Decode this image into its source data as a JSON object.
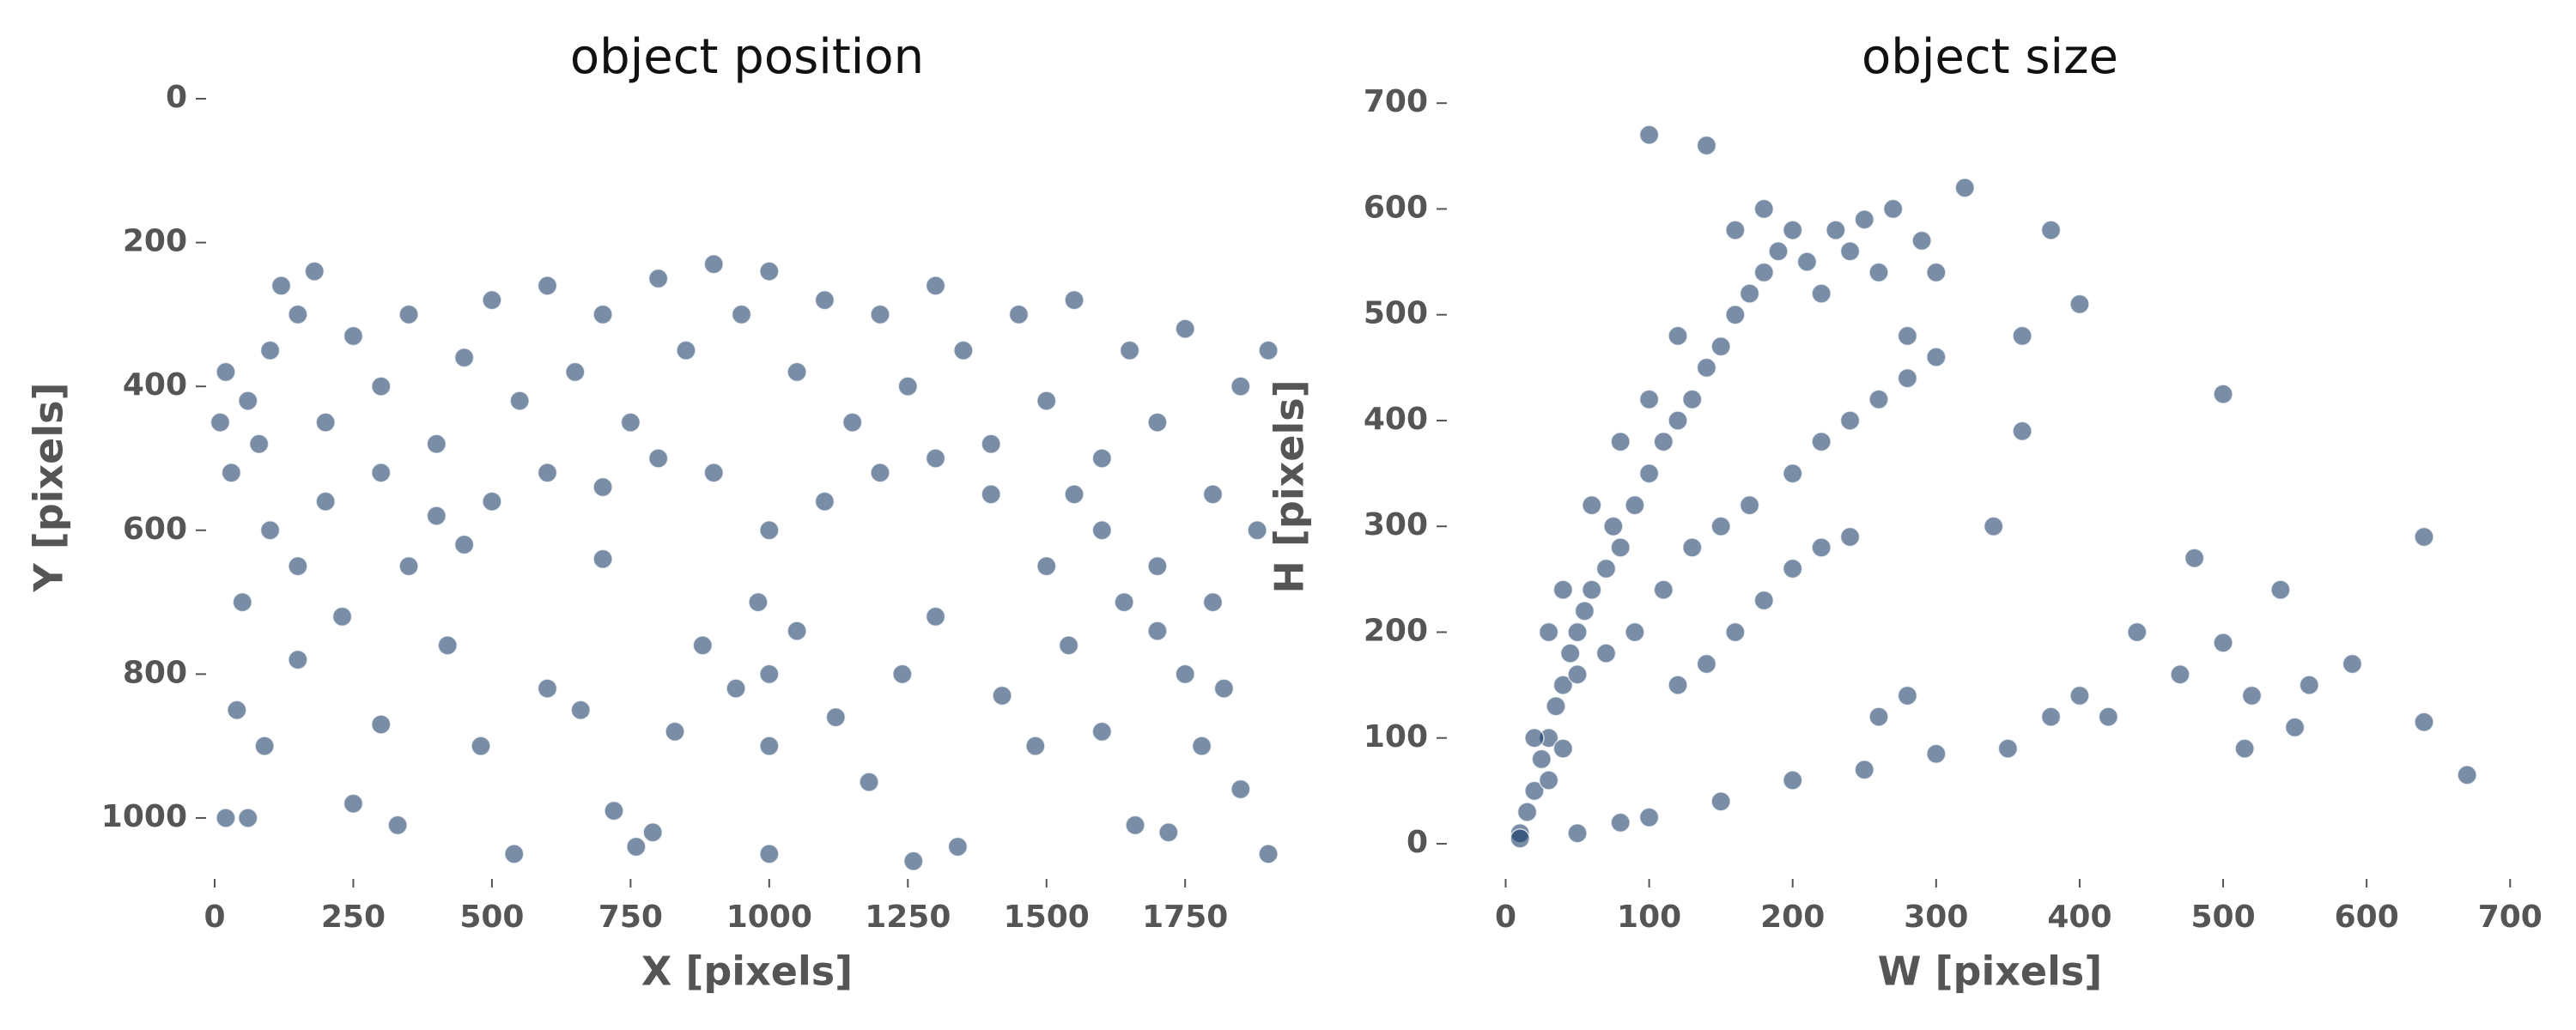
{
  "chart_data": [
    {
      "type": "scatter",
      "title": "object position",
      "x_label": "X [pixels]",
      "y_label": "Y [pixels]",
      "color": "#0b2f5e",
      "xlim": [
        0,
        1920
      ],
      "ylim": [
        1080,
        0
      ],
      "xticks": [
        0,
        250,
        500,
        750,
        1000,
        1250,
        1500,
        1750
      ],
      "yticks": [
        0,
        200,
        400,
        600,
        800,
        1000
      ],
      "x": [
        20,
        60,
        100,
        150,
        180,
        120,
        200,
        250,
        300,
        350,
        400,
        450,
        500,
        550,
        600,
        650,
        700,
        750,
        800,
        850,
        900,
        950,
        1000,
        1050,
        1100,
        1150,
        1200,
        1250,
        1300,
        1350,
        1400,
        1450,
        1500,
        1550,
        1600,
        1650,
        1700,
        1750,
        1800,
        1850,
        1900,
        1880,
        1800,
        1750,
        1700,
        1600,
        1550,
        1500,
        1400,
        1300,
        1200,
        1100,
        1000,
        900,
        800,
        700,
        600,
        500,
        400,
        300,
        200,
        100,
        50,
        30,
        10,
        80,
        40,
        90,
        150,
        230,
        300,
        350,
        420,
        480,
        540,
        600,
        660,
        720,
        760,
        790,
        830,
        880,
        940,
        980,
        1000,
        1000,
        1000,
        1050,
        1120,
        1180,
        1240,
        1300,
        1340,
        1420,
        1480,
        1540,
        1600,
        1660,
        1720,
        1780,
        1850,
        1900,
        1820,
        1700,
        1640,
        20,
        60,
        250,
        330,
        1260,
        700,
        450,
        150
      ],
      "values": [
        380,
        420,
        350,
        300,
        240,
        260,
        450,
        330,
        400,
        300,
        480,
        360,
        280,
        420,
        260,
        380,
        300,
        450,
        250,
        350,
        230,
        300,
        240,
        380,
        280,
        450,
        300,
        400,
        260,
        350,
        480,
        300,
        420,
        280,
        500,
        350,
        450,
        320,
        550,
        400,
        350,
        600,
        700,
        800,
        650,
        600,
        550,
        650,
        550,
        500,
        520,
        560,
        600,
        520,
        500,
        540,
        520,
        560,
        580,
        520,
        560,
        600,
        700,
        520,
        450,
        480,
        850,
        900,
        780,
        720,
        870,
        650,
        760,
        900,
        1050,
        820,
        850,
        990,
        1040,
        1020,
        880,
        760,
        820,
        700,
        900,
        1050,
        800,
        740,
        860,
        950,
        800,
        720,
        1040,
        830,
        900,
        760,
        880,
        1010,
        1020,
        900,
        960,
        1050,
        820,
        740,
        700,
        1000,
        1000,
        980,
        1010,
        1060,
        640,
        620,
        650
      ]
    },
    {
      "type": "scatter",
      "title": "object size",
      "x_label": "W [pixels]",
      "y_label": "H [pixels]",
      "color": "#0b2f5e",
      "xlim": [
        -35,
        710
      ],
      "ylim": [
        -30,
        705
      ],
      "xticks": [
        0,
        100,
        200,
        300,
        400,
        500,
        600,
        700
      ],
      "yticks": [
        0,
        100,
        200,
        300,
        400,
        500,
        600,
        700
      ],
      "x": [
        10,
        15,
        20,
        25,
        30,
        35,
        40,
        45,
        50,
        55,
        60,
        70,
        75,
        80,
        90,
        100,
        110,
        120,
        130,
        140,
        150,
        160,
        170,
        180,
        190,
        200,
        210,
        220,
        230,
        240,
        250,
        260,
        270,
        280,
        290,
        300,
        180,
        160,
        120,
        100,
        80,
        60,
        40,
        30,
        50,
        70,
        90,
        110,
        130,
        150,
        170,
        200,
        220,
        240,
        260,
        280,
        300,
        120,
        140,
        160,
        180,
        200,
        220,
        240,
        260,
        280,
        50,
        80,
        100,
        150,
        200,
        250,
        300,
        350,
        380,
        400,
        420,
        440,
        470,
        500,
        520,
        540,
        560,
        590,
        640,
        670,
        515,
        550,
        480,
        640,
        500,
        380,
        400,
        100,
        140,
        320,
        360,
        340,
        360,
        20,
        30,
        40,
        10
      ],
      "values": [
        10,
        30,
        50,
        80,
        100,
        130,
        150,
        180,
        200,
        220,
        240,
        260,
        300,
        280,
        320,
        350,
        380,
        400,
        420,
        450,
        470,
        500,
        520,
        540,
        560,
        580,
        550,
        520,
        580,
        560,
        590,
        540,
        600,
        480,
        570,
        540,
        600,
        580,
        480,
        420,
        380,
        320,
        240,
        200,
        160,
        180,
        200,
        240,
        280,
        300,
        320,
        350,
        380,
        400,
        420,
        440,
        460,
        150,
        170,
        200,
        230,
        260,
        280,
        290,
        120,
        140,
        10,
        20,
        25,
        40,
        60,
        70,
        85,
        90,
        120,
        140,
        120,
        200,
        160,
        190,
        140,
        240,
        150,
        170,
        115,
        65,
        90,
        110,
        270,
        290,
        425,
        580,
        510,
        670,
        660,
        620,
        480,
        300,
        390,
        100,
        60,
        90,
        5
      ]
    }
  ]
}
